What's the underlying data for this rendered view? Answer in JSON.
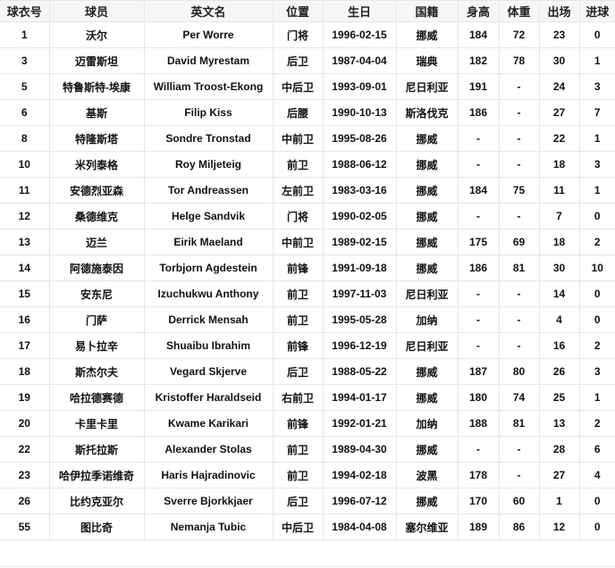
{
  "table": {
    "headers": [
      "球衣号",
      "球员",
      "英文名",
      "位置",
      "生日",
      "国籍",
      "身高",
      "体重",
      "出场",
      "进球"
    ],
    "rows": [
      [
        "1",
        "沃尔",
        "Per Worre",
        "门将",
        "1996-02-15",
        "挪威",
        "184",
        "72",
        "23",
        "0"
      ],
      [
        "3",
        "迈雷斯坦",
        "David Myrestam",
        "后卫",
        "1987-04-04",
        "瑞典",
        "182",
        "78",
        "30",
        "1"
      ],
      [
        "5",
        "特鲁斯特-埃康",
        "William Troost-Ekong",
        "中后卫",
        "1993-09-01",
        "尼日利亚",
        "191",
        "-",
        "24",
        "3"
      ],
      [
        "6",
        "基斯",
        "Filip Kiss",
        "后腰",
        "1990-10-13",
        "斯洛伐克",
        "186",
        "-",
        "27",
        "7"
      ],
      [
        "8",
        "特隆斯塔",
        "Sondre Tronstad",
        "中前卫",
        "1995-08-26",
        "挪威",
        "-",
        "-",
        "22",
        "1"
      ],
      [
        "10",
        "米列泰格",
        "Roy Miljeteig",
        "前卫",
        "1988-06-12",
        "挪威",
        "-",
        "-",
        "18",
        "3"
      ],
      [
        "11",
        "安德烈亚森",
        "Tor Andreassen",
        "左前卫",
        "1983-03-16",
        "挪威",
        "184",
        "75",
        "11",
        "1"
      ],
      [
        "12",
        "桑德维克",
        "Helge Sandvik",
        "门将",
        "1990-02-05",
        "挪威",
        "-",
        "-",
        "7",
        "0"
      ],
      [
        "13",
        "迈兰",
        "Eirik Maeland",
        "中前卫",
        "1989-02-15",
        "挪威",
        "175",
        "69",
        "18",
        "2"
      ],
      [
        "14",
        "阿德施泰因",
        "Torbjorn Agdestein",
        "前锋",
        "1991-09-18",
        "挪威",
        "186",
        "81",
        "30",
        "10"
      ],
      [
        "15",
        "安东尼",
        "Izuchukwu Anthony",
        "前卫",
        "1997-11-03",
        "尼日利亚",
        "-",
        "-",
        "14",
        "0"
      ],
      [
        "16",
        "门萨",
        "Derrick Mensah",
        "前卫",
        "1995-05-28",
        "加纳",
        "-",
        "-",
        "4",
        "0"
      ],
      [
        "17",
        "易卜拉辛",
        "Shuaibu Ibrahim",
        "前锋",
        "1996-12-19",
        "尼日利亚",
        "-",
        "-",
        "16",
        "2"
      ],
      [
        "18",
        "斯杰尔夫",
        "Vegard Skjerve",
        "后卫",
        "1988-05-22",
        "挪威",
        "187",
        "80",
        "26",
        "3"
      ],
      [
        "19",
        "哈拉德赛德",
        "Kristoffer Haraldseid",
        "右前卫",
        "1994-01-17",
        "挪威",
        "180",
        "74",
        "25",
        "1"
      ],
      [
        "20",
        "卡里卡里",
        "Kwame Karikari",
        "前锋",
        "1992-01-21",
        "加纳",
        "188",
        "81",
        "13",
        "2"
      ],
      [
        "22",
        "斯托拉斯",
        "Alexander Stolas",
        "前卫",
        "1989-04-30",
        "挪威",
        "-",
        "-",
        "28",
        "6"
      ],
      [
        "23",
        "哈伊拉季诺维奇",
        "Haris Hajradinovic",
        "前卫",
        "1994-02-18",
        "波黑",
        "178",
        "-",
        "27",
        "4"
      ],
      [
        "26",
        "比约克亚尔",
        "Sverre Bjorkkjaer",
        "后卫",
        "1996-07-12",
        "挪威",
        "170",
        "60",
        "1",
        "0"
      ],
      [
        "55",
        "图比奇",
        "Nemanja Tubic",
        "中后卫",
        "1984-04-08",
        "塞尔维亚",
        "189",
        "86",
        "12",
        "0"
      ]
    ]
  }
}
